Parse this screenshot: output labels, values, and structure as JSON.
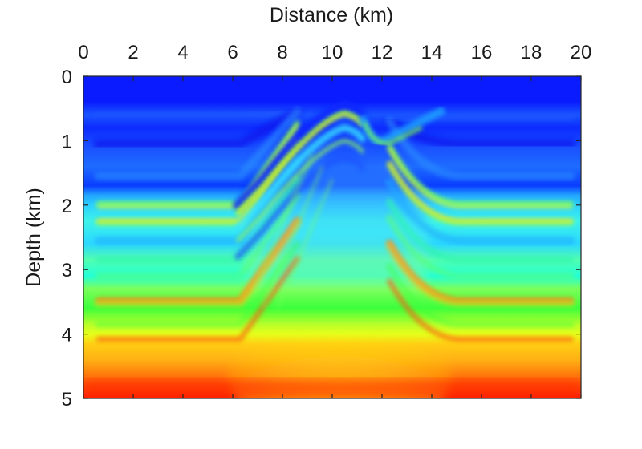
{
  "chart_data": {
    "type": "heatmap",
    "title": "",
    "xlabel": "Distance (km)",
    "ylabel": "Depth (km)",
    "x_axis_position": "top",
    "y_axis_direction": "down",
    "xlim": [
      0,
      20
    ],
    "ylim": [
      0,
      5
    ],
    "x_ticks": [
      "0",
      "2",
      "4",
      "6",
      "8",
      "10",
      "12",
      "14",
      "16",
      "18",
      "20"
    ],
    "y_ticks": [
      "0",
      "1",
      "2",
      "3",
      "4",
      "5"
    ],
    "colormap": "jet",
    "colors": {
      "shallow_blue": "#0a1cff",
      "mid_cyan": "#19d8ff",
      "deep_green": "#3cff3c",
      "yellow": "#ffef14",
      "red": "#ff1a00"
    },
    "grid": false,
    "colorbar": false,
    "description_layers": [
      {
        "name": "layer",
        "depth_km": 0.65
      },
      {
        "name": "layer",
        "depth_km": 1.05
      },
      {
        "name": "reflector",
        "depth_km": 2.0
      },
      {
        "name": "reflector",
        "depth_km": 2.25
      },
      {
        "name": "layer",
        "depth_km": 2.85
      },
      {
        "name": "layer",
        "depth_km": 3.5
      },
      {
        "name": "layer",
        "depth_km": 4.05
      }
    ],
    "anticline_crest_km": [
      10.5,
      0.45
    ]
  }
}
